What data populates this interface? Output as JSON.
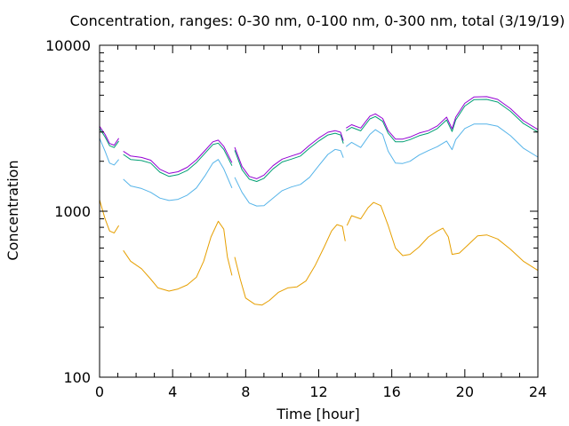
{
  "chart_data": {
    "type": "line",
    "title": "Concentration, ranges: 0-30 nm, 0-100 nm, 0-300 nm, total (3/19/19)",
    "xlabel": "Time [hour]",
    "ylabel": "Concentration",
    "xlim": [
      0,
      24
    ],
    "ylim": [
      100,
      10000
    ],
    "yscale": "log",
    "x_ticks": [
      0,
      4,
      8,
      12,
      16,
      20,
      24
    ],
    "x_tick_labels": [
      "0",
      "4",
      "8",
      "12",
      "16",
      "20",
      "24"
    ],
    "y_ticks": [
      100,
      1000,
      10000
    ],
    "y_tick_labels": [
      "100",
      "1000",
      "10000"
    ],
    "y_minor_ticks": [
      200,
      300,
      400,
      500,
      600,
      700,
      800,
      900,
      2000,
      3000,
      4000,
      5000,
      6000,
      7000,
      8000,
      9000
    ],
    "x_minor_ticks": [
      1,
      2,
      3,
      5,
      6,
      7,
      9,
      10,
      11,
      13,
      14,
      15,
      17,
      18,
      19,
      21,
      22,
      23
    ],
    "grid": false,
    "legend": "none",
    "series": [
      {
        "color": "#e69f00",
        "segments": [
          [
            [
              0,
              1170
            ],
            [
              0.3,
              900
            ],
            [
              0.55,
              760
            ],
            [
              0.8,
              740
            ],
            [
              1.05,
              820
            ]
          ],
          [
            [
              1.3,
              580
            ],
            [
              1.7,
              500
            ],
            [
              2.3,
              450
            ],
            [
              2.8,
              390
            ],
            [
              3.2,
              345
            ],
            [
              3.8,
              330
            ],
            [
              4.3,
              340
            ],
            [
              4.8,
              360
            ],
            [
              5.3,
              400
            ],
            [
              5.7,
              500
            ],
            [
              6.1,
              700
            ],
            [
              6.5,
              870
            ],
            [
              6.8,
              780
            ],
            [
              7.0,
              530
            ],
            [
              7.25,
              410
            ]
          ],
          [
            [
              7.4,
              530
            ],
            [
              7.7,
              390
            ],
            [
              8.0,
              300
            ],
            [
              8.5,
              275
            ],
            [
              8.9,
              272
            ],
            [
              9.3,
              290
            ],
            [
              9.8,
              325
            ],
            [
              10.3,
              345
            ],
            [
              10.8,
              350
            ],
            [
              11.3,
              380
            ],
            [
              11.8,
              470
            ],
            [
              12.3,
              610
            ],
            [
              12.7,
              760
            ],
            [
              13.0,
              830
            ],
            [
              13.3,
              810
            ],
            [
              13.45,
              660
            ]
          ],
          [
            [
              13.55,
              820
            ],
            [
              13.8,
              940
            ],
            [
              14.3,
              900
            ],
            [
              14.7,
              1050
            ],
            [
              15.0,
              1130
            ],
            [
              15.4,
              1080
            ],
            [
              15.8,
              820
            ],
            [
              16.2,
              600
            ],
            [
              16.6,
              540
            ],
            [
              17.0,
              550
            ],
            [
              17.5,
              610
            ],
            [
              18.0,
              700
            ],
            [
              18.5,
              760
            ],
            [
              18.8,
              790
            ],
            [
              19.1,
              700
            ],
            [
              19.3,
              550
            ],
            [
              19.7,
              560
            ],
            [
              20.2,
              630
            ],
            [
              20.7,
              710
            ],
            [
              21.2,
              720
            ],
            [
              21.8,
              680
            ],
            [
              22.5,
              590
            ],
            [
              23.2,
              500
            ],
            [
              24,
              440
            ]
          ]
        ]
      },
      {
        "color": "#56b4e9",
        "segments": [
          [
            [
              0,
              2750
            ],
            [
              0.3,
              2300
            ],
            [
              0.55,
              1950
            ],
            [
              0.8,
              1900
            ],
            [
              1.05,
              2050
            ]
          ],
          [
            [
              1.3,
              1560
            ],
            [
              1.7,
              1420
            ],
            [
              2.3,
              1370
            ],
            [
              2.8,
              1300
            ],
            [
              3.3,
              1200
            ],
            [
              3.8,
              1160
            ],
            [
              4.3,
              1180
            ],
            [
              4.8,
              1250
            ],
            [
              5.3,
              1380
            ],
            [
              5.8,
              1650
            ],
            [
              6.2,
              1950
            ],
            [
              6.5,
              2050
            ],
            [
              6.8,
              1800
            ],
            [
              7.25,
              1380
            ]
          ],
          [
            [
              7.4,
              1600
            ],
            [
              7.8,
              1300
            ],
            [
              8.2,
              1120
            ],
            [
              8.6,
              1075
            ],
            [
              9.0,
              1080
            ],
            [
              9.5,
              1200
            ],
            [
              10.0,
              1330
            ],
            [
              10.5,
              1400
            ],
            [
              11.0,
              1450
            ],
            [
              11.5,
              1600
            ],
            [
              12.0,
              1880
            ],
            [
              12.5,
              2200
            ],
            [
              12.9,
              2360
            ],
            [
              13.2,
              2320
            ],
            [
              13.35,
              2100
            ]
          ],
          [
            [
              13.5,
              2450
            ],
            [
              13.8,
              2600
            ],
            [
              14.3,
              2420
            ],
            [
              14.8,
              2900
            ],
            [
              15.1,
              3100
            ],
            [
              15.5,
              2900
            ],
            [
              15.8,
              2300
            ],
            [
              16.2,
              1950
            ],
            [
              16.6,
              1940
            ],
            [
              17.0,
              2000
            ],
            [
              17.5,
              2180
            ],
            [
              18.0,
              2320
            ],
            [
              18.5,
              2450
            ],
            [
              19.0,
              2650
            ],
            [
              19.3,
              2350
            ],
            [
              19.5,
              2700
            ],
            [
              20.0,
              3150
            ],
            [
              20.5,
              3350
            ],
            [
              21.2,
              3350
            ],
            [
              21.8,
              3250
            ],
            [
              22.5,
              2850
            ],
            [
              23.2,
              2400
            ],
            [
              24,
              2120
            ]
          ]
        ]
      },
      {
        "color": "#009e73",
        "segments": [
          [
            [
              0,
              3150
            ],
            [
              0.3,
              2800
            ],
            [
              0.55,
              2480
            ],
            [
              0.8,
              2420
            ],
            [
              1.05,
              2650
            ]
          ],
          [
            [
              1.3,
              2200
            ],
            [
              1.7,
              2050
            ],
            [
              2.3,
              2020
            ],
            [
              2.8,
              1950
            ],
            [
              3.3,
              1720
            ],
            [
              3.8,
              1620
            ],
            [
              4.3,
              1660
            ],
            [
              4.8,
              1760
            ],
            [
              5.3,
              1960
            ],
            [
              5.8,
              2250
            ],
            [
              6.2,
              2520
            ],
            [
              6.5,
              2570
            ],
            [
              6.8,
              2360
            ],
            [
              7.25,
              1880
            ]
          ],
          [
            [
              7.4,
              2330
            ],
            [
              7.8,
              1780
            ],
            [
              8.2,
              1560
            ],
            [
              8.6,
              1510
            ],
            [
              9.0,
              1580
            ],
            [
              9.5,
              1800
            ],
            [
              10.0,
              1980
            ],
            [
              10.5,
              2060
            ],
            [
              11.0,
              2150
            ],
            [
              11.5,
              2400
            ],
            [
              12.0,
              2650
            ],
            [
              12.5,
              2880
            ],
            [
              12.9,
              2950
            ],
            [
              13.2,
              2880
            ],
            [
              13.35,
              2560
            ]
          ],
          [
            [
              13.5,
              3050
            ],
            [
              13.8,
              3200
            ],
            [
              14.3,
              3050
            ],
            [
              14.8,
              3600
            ],
            [
              15.1,
              3720
            ],
            [
              15.5,
              3480
            ],
            [
              15.8,
              2950
            ],
            [
              16.2,
              2620
            ],
            [
              16.6,
              2620
            ],
            [
              17.0,
              2700
            ],
            [
              17.5,
              2850
            ],
            [
              18.0,
              2950
            ],
            [
              18.5,
              3150
            ],
            [
              19.0,
              3550
            ],
            [
              19.3,
              3020
            ],
            [
              19.5,
              3550
            ],
            [
              20.0,
              4300
            ],
            [
              20.5,
              4700
            ],
            [
              21.2,
              4720
            ],
            [
              21.8,
              4550
            ],
            [
              22.5,
              4000
            ],
            [
              23.2,
              3380
            ],
            [
              24,
              3000
            ]
          ]
        ]
      },
      {
        "color": "#9400d3",
        "segments": [
          [
            [
              0,
              3250
            ],
            [
              0.3,
              2900
            ],
            [
              0.55,
              2560
            ],
            [
              0.8,
              2500
            ],
            [
              1.05,
              2750
            ]
          ],
          [
            [
              1.3,
              2300
            ],
            [
              1.7,
              2150
            ],
            [
              2.3,
              2110
            ],
            [
              2.8,
              2030
            ],
            [
              3.3,
              1790
            ],
            [
              3.8,
              1690
            ],
            [
              4.3,
              1730
            ],
            [
              4.8,
              1840
            ],
            [
              5.3,
              2040
            ],
            [
              5.8,
              2340
            ],
            [
              6.2,
              2620
            ],
            [
              6.5,
              2680
            ],
            [
              6.8,
              2460
            ],
            [
              7.25,
              1960
            ]
          ],
          [
            [
              7.4,
              2430
            ],
            [
              7.8,
              1860
            ],
            [
              8.2,
              1620
            ],
            [
              8.6,
              1570
            ],
            [
              9.0,
              1650
            ],
            [
              9.5,
              1880
            ],
            [
              10.0,
              2060
            ],
            [
              10.5,
              2150
            ],
            [
              11.0,
              2240
            ],
            [
              11.5,
              2500
            ],
            [
              12.0,
              2760
            ],
            [
              12.5,
              2990
            ],
            [
              12.9,
              3060
            ],
            [
              13.2,
              2990
            ],
            [
              13.35,
              2660
            ]
          ],
          [
            [
              13.5,
              3170
            ],
            [
              13.8,
              3320
            ],
            [
              14.3,
              3170
            ],
            [
              14.8,
              3740
            ],
            [
              15.1,
              3860
            ],
            [
              15.5,
              3620
            ],
            [
              15.8,
              3060
            ],
            [
              16.2,
              2720
            ],
            [
              16.6,
              2720
            ],
            [
              17.0,
              2800
            ],
            [
              17.5,
              2960
            ],
            [
              18.0,
              3060
            ],
            [
              18.5,
              3270
            ],
            [
              19.0,
              3690
            ],
            [
              19.3,
              3140
            ],
            [
              19.5,
              3690
            ],
            [
              20.0,
              4470
            ],
            [
              20.5,
              4880
            ],
            [
              21.2,
              4900
            ],
            [
              21.8,
              4720
            ],
            [
              22.5,
              4150
            ],
            [
              23.2,
              3510
            ],
            [
              24,
              3110
            ]
          ]
        ]
      }
    ]
  }
}
